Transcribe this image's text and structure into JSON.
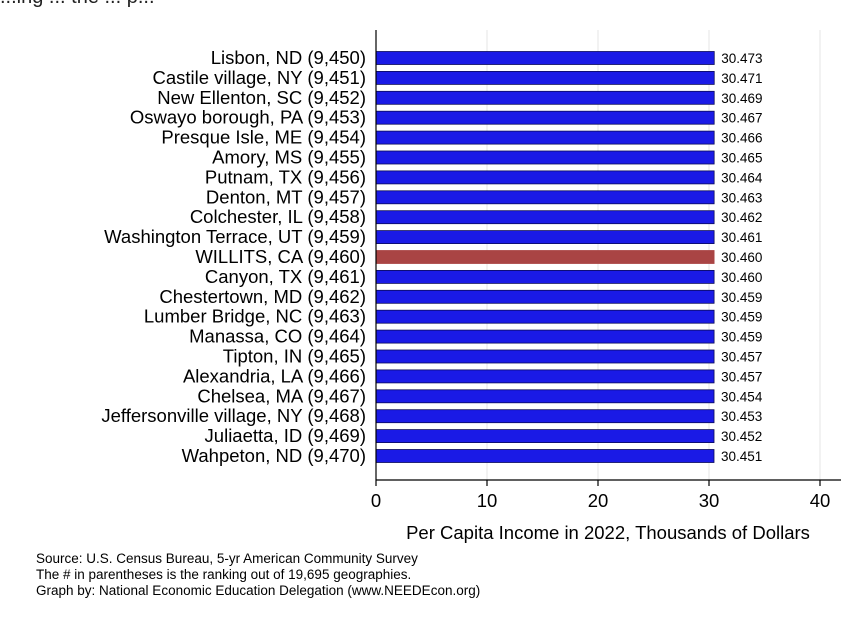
{
  "page": {
    "top_title": "...ing ... the ... p..."
  },
  "chart_data": {
    "type": "bar",
    "orientation": "horizontal",
    "categories": [
      "Lisbon, ND (9,450)",
      "Castile village, NY (9,451)",
      "New Ellenton, SC (9,452)",
      "Oswayo borough, PA (9,453)",
      "Presque Isle, ME (9,454)",
      "Amory, MS (9,455)",
      "Putnam, TX (9,456)",
      "Denton, MT (9,457)",
      "Colchester, IL (9,458)",
      "Washington Terrace, UT (9,459)",
      "WILLITS, CA (9,460)",
      "Canyon, TX (9,461)",
      "Chestertown, MD (9,462)",
      "Lumber Bridge, NC (9,463)",
      "Manassa, CO (9,464)",
      "Tipton, IN (9,465)",
      "Alexandria, LA (9,466)",
      "Chelsea, MA (9,467)",
      "Jeffersonville village, NY (9,468)",
      "Juliaetta, ID (9,469)",
      "Wahpeton, ND (9,470)"
    ],
    "values": [
      30.473,
      30.471,
      30.469,
      30.467,
      30.466,
      30.465,
      30.464,
      30.463,
      30.462,
      30.461,
      30.46,
      30.46,
      30.459,
      30.459,
      30.459,
      30.457,
      30.457,
      30.454,
      30.453,
      30.452,
      30.451
    ],
    "value_labels": [
      "30.473",
      "30.471",
      "30.469",
      "30.467",
      "30.466",
      "30.465",
      "30.464",
      "30.463",
      "30.462",
      "30.461",
      "30.460",
      "30.460",
      "30.459",
      "30.459",
      "30.459",
      "30.457",
      "30.457",
      "30.454",
      "30.453",
      "30.452",
      "30.451"
    ],
    "highlight_index": 10,
    "xlabel": "Per Capita Income in 2022, Thousands of Dollars",
    "xlim": [
      0,
      40
    ],
    "xticks": [
      0,
      10,
      20,
      30,
      40
    ],
    "grid": "vertical",
    "colors": {
      "bar": "#1a1ae6",
      "highlight": "#a94444",
      "bar_edge": "#0a0a5a",
      "plot_background": "#ffffff",
      "outer_background": "#ffffff",
      "grid": "#e4e4e4",
      "axis": "#000000"
    }
  },
  "source": {
    "lines": [
      "Source: U.S. Census Bureau, 5-yr American Community Survey",
      "The # in parentheses is the ranking out of 19,695 geographies.",
      "Graph by: National Economic Education Delegation (www.NEEDEcon.org)"
    ]
  }
}
